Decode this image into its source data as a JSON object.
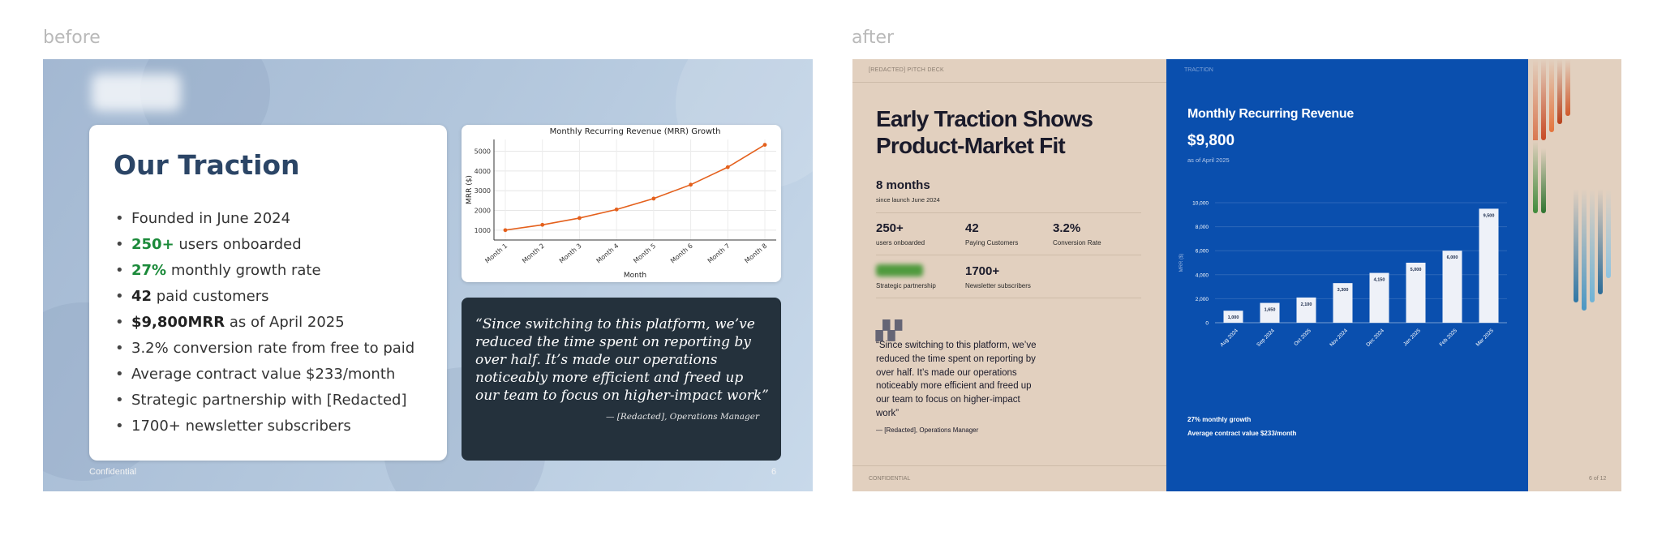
{
  "captions": {
    "before": "before",
    "after": "after"
  },
  "before_slide": {
    "title": "Our Traction",
    "bullets": [
      {
        "strong": "",
        "text": "Founded in June 2024"
      },
      {
        "strong": "250+",
        "text": " users onboarded"
      },
      {
        "strong": "27%",
        "text": " monthly growth rate"
      },
      {
        "strong": "42",
        "text": " paid customers"
      },
      {
        "strong": "$9,800MRR",
        "text": " as of April 2025"
      },
      {
        "strong": "",
        "text": "3.2% conversion rate from free to paid"
      },
      {
        "strong": "",
        "text": "Average contract value $233/month"
      },
      {
        "strong": "",
        "text": "Strategic partnership with [Redacted]"
      },
      {
        "strong": "",
        "text": "1700+ newsletter subscribers"
      }
    ],
    "quote": "“Since switching to this platform, we’ve reduced the time spent on reporting by over half. It’s made our operations noticeably more efficient and freed up our team to focus on higher-impact work”",
    "quote_author": "— [Redacted], Operations Manager",
    "footer": "Confidential",
    "page_number": "6"
  },
  "after_slide": {
    "kicker": "[REDACTED] PITCH DECK",
    "title": "Early Traction Shows Product-Market Fit",
    "headline_stat": {
      "value": "8 months",
      "label": "since launch June 2024"
    },
    "stats": [
      {
        "value": "250+",
        "label": "users onboarded"
      },
      {
        "value": "42",
        "label": "Paying Customers"
      },
      {
        "value": "3.2%",
        "label": "Conversion Rate"
      }
    ],
    "partnership_label": "Strategic partnership",
    "newsletter": {
      "value": "1700+",
      "label": "Newsletter subscribers"
    },
    "quote": "“Since switching to this platform, we’ve reduced the time spent on reporting by over half. It’s made our operations noticeably more efficient and freed up our team to focus on higher-impact work”",
    "quote_author": "— [Redacted], Operations Manager",
    "confidential": "CONFIDENTIAL",
    "section_kicker": "TRACTION",
    "mrr_heading": "Monthly Recurring Revenue",
    "mrr_value": "$9,800",
    "mrr_sub": "as of April 2025",
    "growth_note": "27% monthly growth",
    "acv_note": "Average contract value $233/month",
    "page": "6 of 12"
  },
  "chart_data": [
    {
      "type": "line",
      "title": "Monthly Recurring Revenue (MRR) Growth",
      "xlabel": "Month",
      "ylabel": "MRR ($)",
      "categories": [
        "Month 1",
        "Month 2",
        "Month 3",
        "Month 4",
        "Month 5",
        "Month 6",
        "Month 7",
        "Month 8"
      ],
      "values": [
        1000,
        1270,
        1613,
        2048,
        2601,
        3304,
        4196,
        5329
      ],
      "yticks": [
        1000,
        2000,
        3000,
        4000,
        5000
      ],
      "ylim": [
        500,
        5600
      ],
      "grid": true,
      "color": "#e4601c"
    },
    {
      "type": "bar",
      "title": "",
      "xlabel": "",
      "ylabel": "MRR ($)",
      "categories": [
        "Aug 2024",
        "Sep 2024",
        "Oct 2025",
        "Nov 2024",
        "Dec 2024",
        "Jan 2025",
        "Feb 2025",
        "Mar 2025"
      ],
      "values": [
        1000,
        1650,
        2100,
        3300,
        4150,
        5000,
        6000,
        9500
      ],
      "data_labels": [
        "1,000",
        "1,650",
        "2,100",
        "3,300",
        "4,150",
        "5,000",
        "6,000",
        "9,500"
      ],
      "yticks": [
        0,
        2000,
        4000,
        6000,
        8000,
        10000
      ],
      "ytick_labels": [
        "0",
        "2,000",
        "4,000",
        "6,000",
        "8,000",
        "10,000"
      ],
      "ylim": [
        0,
        10000
      ],
      "grid": true,
      "color": "#eef1f8"
    }
  ]
}
